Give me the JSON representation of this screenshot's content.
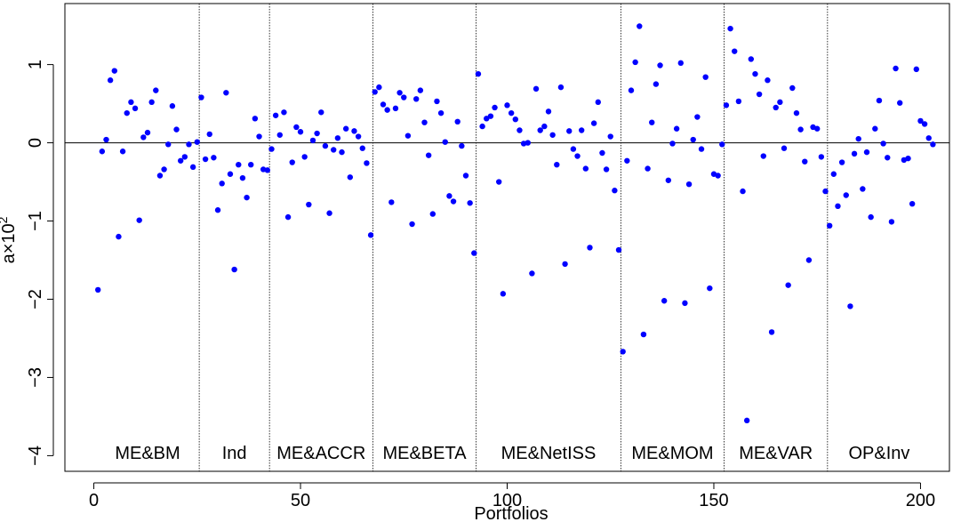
{
  "chart_data": {
    "type": "scatter",
    "title": "",
    "xlabel": "Portfolios",
    "ylabel_base": "a",
    "ylabel_times": "×",
    "ylabel_mantissa": "10",
    "ylabel_exponent": "2",
    "xlim": [
      -7,
      207
    ],
    "ylim": [
      -4.2,
      1.78
    ],
    "xticks": [
      0,
      50,
      100,
      150,
      200
    ],
    "xtick_labels": [
      "0",
      "50",
      "100",
      "150",
      "200"
    ],
    "yticks": [
      -4,
      -3,
      -2,
      -1,
      0,
      1
    ],
    "ytick_labels": [
      "−4",
      "−3",
      "−2",
      "−1",
      "0",
      "1"
    ],
    "grid": false,
    "zero_line": true,
    "point_color": "#0000ff",
    "groups": [
      {
        "label": "ME&BM",
        "start": 1,
        "end": 25
      },
      {
        "label": "Ind",
        "start": 26,
        "end": 42
      },
      {
        "label": "ME&ACCR",
        "start": 43,
        "end": 67
      },
      {
        "label": "ME&BETA",
        "start": 68,
        "end": 92
      },
      {
        "label": "ME&NetISS",
        "start": 93,
        "end": 127
      },
      {
        "label": "ME&MOM",
        "start": 128,
        "end": 152
      },
      {
        "label": "ME&VAR",
        "start": 153,
        "end": 177
      },
      {
        "label": "OP&Inv",
        "start": 178,
        "end": 202
      }
    ],
    "separators": [
      25.5,
      42.5,
      67.5,
      92.5,
      127.5,
      152.5,
      177.5
    ],
    "y": [
      -1.88,
      -0.11,
      0.04,
      0.8,
      0.92,
      -1.2,
      -0.11,
      0.38,
      0.52,
      0.44,
      -0.99,
      0.07,
      0.13,
      0.52,
      0.67,
      -0.42,
      -0.34,
      -0.02,
      0.47,
      0.17,
      -0.23,
      -0.18,
      -0.02,
      -0.31,
      0.01,
      0.58,
      -0.21,
      0.11,
      -0.19,
      -0.86,
      -0.52,
      0.64,
      -0.4,
      -1.62,
      -0.28,
      -0.45,
      -0.7,
      -0.28,
      0.31,
      0.08,
      -0.34,
      -0.35,
      -0.08,
      0.35,
      0.1,
      0.39,
      -0.95,
      -0.25,
      0.2,
      0.14,
      -0.18,
      -0.79,
      0.03,
      0.12,
      0.39,
      -0.04,
      -0.9,
      -0.09,
      0.06,
      -0.12,
      0.18,
      -0.44,
      0.15,
      0.08,
      -0.07,
      -0.26,
      -1.18,
      0.65,
      0.71,
      0.49,
      0.42,
      -0.76,
      0.44,
      0.64,
      0.58,
      0.09,
      -1.04,
      0.56,
      0.67,
      0.26,
      -0.16,
      -0.91,
      0.53,
      0.38,
      0.01,
      -0.68,
      -0.75,
      0.27,
      -0.04,
      -0.42,
      -0.77,
      -1.41,
      0.88,
      0.21,
      0.31,
      0.34,
      0.45,
      -0.5,
      -1.93,
      0.48,
      0.38,
      0.3,
      0.16,
      -0.01,
      0.0,
      -1.67,
      0.69,
      0.16,
      0.21,
      0.4,
      0.1,
      -0.28,
      0.71,
      -1.55,
      0.15,
      -0.08,
      -0.17,
      0.16,
      -0.33,
      -1.34,
      0.25,
      0.52,
      -0.13,
      -0.34,
      0.08,
      -0.61,
      -1.37,
      -2.67,
      -0.23,
      0.67,
      1.03,
      1.49,
      -2.45,
      -0.33,
      0.26,
      0.75,
      0.99,
      -2.02,
      -0.48,
      -0.01,
      0.18,
      1.02,
      -2.05,
      -0.53,
      0.04,
      0.33,
      -0.08,
      0.84,
      -1.86,
      -0.4,
      -0.42,
      -0.02,
      0.48,
      1.46,
      1.17,
      0.53,
      -0.62,
      -3.55,
      1.07,
      0.88,
      0.62,
      -0.17,
      0.8,
      -2.42,
      0.45,
      0.52,
      -0.07,
      -1.82,
      0.7,
      0.38,
      0.17,
      -0.24,
      -1.5,
      0.2,
      0.18,
      -0.18,
      -0.62,
      -1.06,
      -0.4,
      -0.81,
      -0.25,
      -0.67,
      -2.09,
      -0.14,
      0.05,
      -0.59,
      -0.12,
      -0.95,
      0.18,
      0.54,
      -0.01,
      -0.19,
      -1.01,
      0.95,
      0.51,
      -0.22,
      -0.2,
      -0.78,
      0.94,
      0.28,
      0.24,
      0.06,
      -0.02
    ]
  }
}
